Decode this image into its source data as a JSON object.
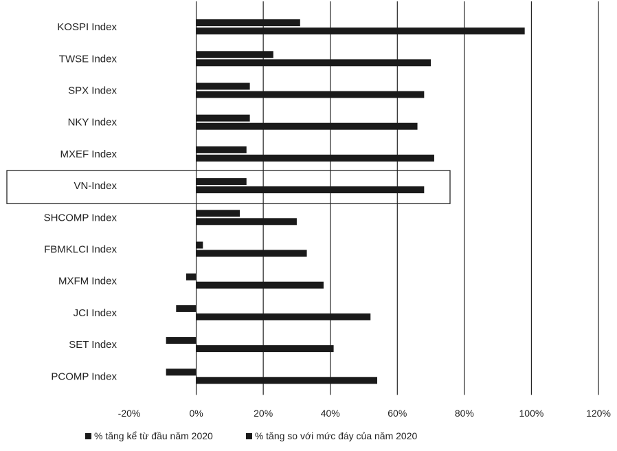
{
  "chart_data": {
    "type": "bar",
    "orientation": "horizontal",
    "categories": [
      "KOSPI Index",
      "TWSE Index",
      "SPX Index",
      "NKY Index",
      "MXEF Index",
      "VN-Index",
      "SHCOMP Index",
      "FBMKLCI Index",
      "MXFM Index",
      "JCI Index",
      "SET Index",
      "PCOMP Index"
    ],
    "series": [
      {
        "name": "% tăng kể từ đầu năm 2020",
        "values": [
          31,
          23,
          16,
          16,
          15,
          15,
          13,
          2,
          -3,
          -6,
          -9,
          -9
        ]
      },
      {
        "name": "% tăng so với mức đáy của năm 2020",
        "values": [
          98,
          70,
          68,
          66,
          71,
          68,
          30,
          33,
          38,
          52,
          41,
          54
        ]
      }
    ],
    "xlim": [
      -20,
      120
    ],
    "xticks": [
      "-20%",
      "0%",
      "20%",
      "40%",
      "60%",
      "80%",
      "100%",
      "120%"
    ],
    "grid": "vertical",
    "highlighted_category": "VN-Index",
    "legend_position": "bottom",
    "colors": {
      "bars": "#1a1a1a",
      "grid": "#222222"
    }
  }
}
